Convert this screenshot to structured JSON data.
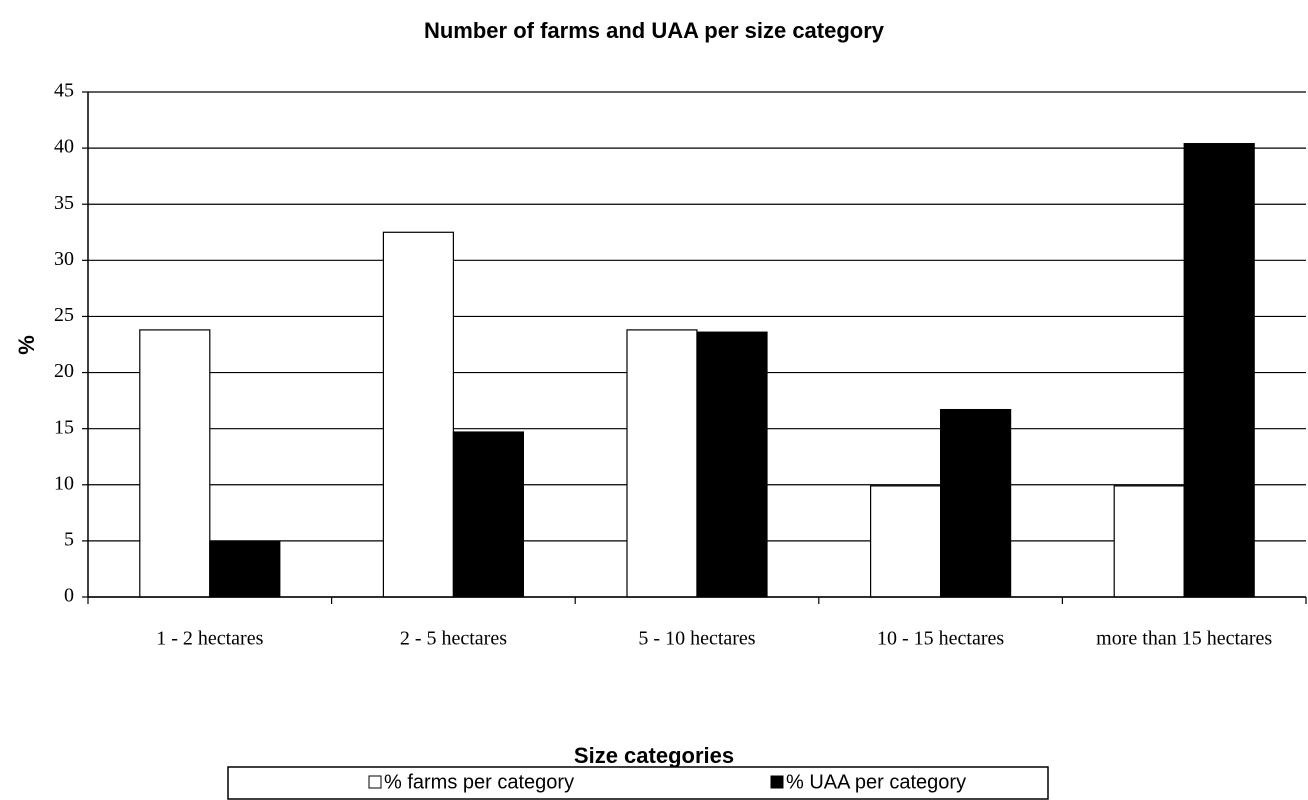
{
  "chart_data": {
    "type": "bar",
    "title": "Number of farms and UAA per size category",
    "x_label": "Size categories",
    "y_label": "%",
    "categories": [
      "1 - 2 hectares",
      "2 - 5 hectares",
      "5 - 10 hectares",
      "10 - 15 hectares",
      "more than 15 hectares"
    ],
    "series": [
      {
        "name": "% farms per category",
        "color": "#ffffff",
        "values": [
          23.8,
          32.5,
          23.8,
          9.9,
          9.9
        ]
      },
      {
        "name": "% UAA per category",
        "color": "#000000",
        "values": [
          4.9,
          14.7,
          23.6,
          16.7,
          40.4
        ]
      }
    ],
    "ylim": [
      0,
      45
    ],
    "yticks": [
      0,
      5,
      10,
      15,
      20,
      25,
      30,
      35,
      40,
      45
    ],
    "grid": true
  }
}
